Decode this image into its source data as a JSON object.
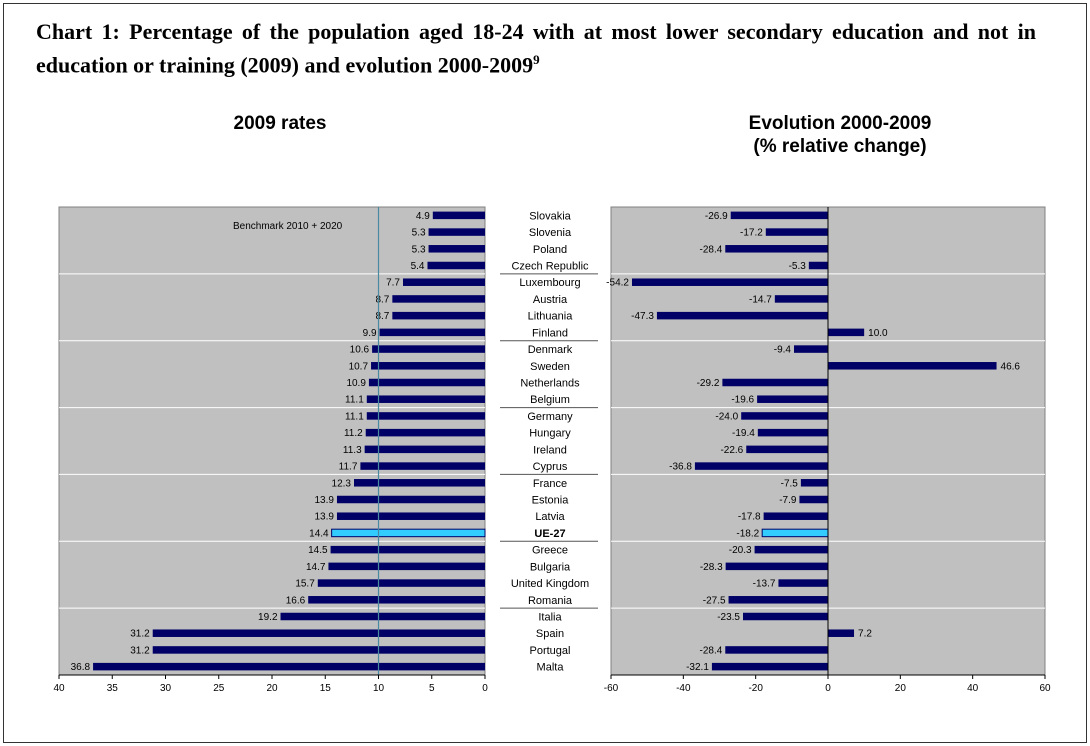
{
  "title": {
    "text": "Chart 1: Percentage of the population aged 18-24 with at most lower secondary education and not in education or training (2009) and evolution 2000-2009",
    "footnote": "9"
  },
  "colors": {
    "panel_bg": "#c0c0c0",
    "bar": "#000066",
    "highlight": "#33ccff",
    "benchmark_line": "#4a8aa0"
  },
  "chart_data": [
    {
      "type": "bar",
      "orientation": "horizontal",
      "title": "2009 rates",
      "categories": [
        "Slovakia",
        "Slovenia",
        "Poland",
        "Czech Republic",
        "Luxembourg",
        "Austria",
        "Lithuania",
        "Finland",
        "Denmark",
        "Sweden",
        "Netherlands",
        "Belgium",
        "Germany",
        "Hungary",
        "Ireland",
        "Cyprus",
        "France",
        "Estonia",
        "Latvia",
        "UE-27",
        "Greece",
        "Bulgaria",
        "United Kingdom",
        "Romania",
        "Italia",
        "Spain",
        "Portugal",
        "Malta"
      ],
      "values": [
        4.9,
        5.3,
        5.3,
        5.4,
        7.7,
        8.7,
        8.7,
        9.9,
        10.6,
        10.7,
        10.9,
        11.1,
        11.1,
        11.2,
        11.3,
        11.7,
        12.3,
        13.9,
        13.9,
        14.4,
        14.5,
        14.7,
        15.7,
        16.6,
        19.2,
        31.2,
        31.2,
        36.8
      ],
      "value_labels": [
        "4.9",
        "5.3",
        "5.3",
        "5.4",
        "7.7",
        "8.7",
        "8.7",
        "9.9",
        "10.6",
        "10.7",
        "10.9",
        "11.1",
        "11.1",
        "11.2",
        "11.3",
        "11.7",
        "12.3",
        "13.9",
        "13.9",
        "14.4",
        "14.5",
        "14.7",
        "15.7",
        "16.6",
        "19.2",
        "31.2",
        "31.2",
        "36.8"
      ],
      "highlight": "UE-27",
      "xlim": [
        40,
        0
      ],
      "xticks": [
        40,
        35,
        30,
        25,
        20,
        15,
        10,
        5,
        0
      ],
      "reference_line": {
        "value": 10,
        "label": "Benchmark 2010 + 2020"
      },
      "grid": true
    },
    {
      "type": "bar",
      "orientation": "horizontal",
      "title": "Evolution 2000-2009",
      "subtitle": "(% relative change)",
      "categories": [
        "Slovakia",
        "Slovenia",
        "Poland",
        "Czech Republic",
        "Luxembourg",
        "Austria",
        "Lithuania",
        "Finland",
        "Denmark",
        "Sweden",
        "Netherlands",
        "Belgium",
        "Germany",
        "Hungary",
        "Ireland",
        "Cyprus",
        "France",
        "Estonia",
        "Latvia",
        "UE-27",
        "Greece",
        "Bulgaria",
        "United Kingdom",
        "Romania",
        "Italia",
        "Spain",
        "Portugal",
        "Malta"
      ],
      "values": [
        -26.9,
        -17.2,
        -28.4,
        -5.3,
        -54.2,
        -14.7,
        -47.3,
        10.0,
        -9.4,
        46.6,
        -29.2,
        -19.6,
        -24.0,
        -19.4,
        -22.6,
        -36.8,
        -7.5,
        -7.9,
        -17.8,
        -18.2,
        -20.3,
        -28.3,
        -13.7,
        -27.5,
        -23.5,
        7.2,
        -28.4,
        -32.1
      ],
      "value_labels": [
        "-26.9",
        "-17.2",
        "-28.4",
        "-5.3",
        "-54.2",
        "-14.7",
        "-47.3",
        "10.0",
        "-9.4",
        "46.6",
        "-29.2",
        "-19.6",
        "-24.0",
        "-19.4",
        "-22.6",
        "-36.8",
        "-7.5",
        "-7.9",
        "-17.8",
        "-18.2",
        "-20.3",
        "-28.3",
        "-13.7",
        "-27.5",
        "-23.5",
        "7.2",
        "-28.4",
        "-32.1"
      ],
      "highlight": "UE-27",
      "xlim": [
        -60,
        60
      ],
      "xticks": [
        -60,
        -40,
        -20,
        0,
        20,
        40,
        60
      ],
      "grid": true
    }
  ]
}
